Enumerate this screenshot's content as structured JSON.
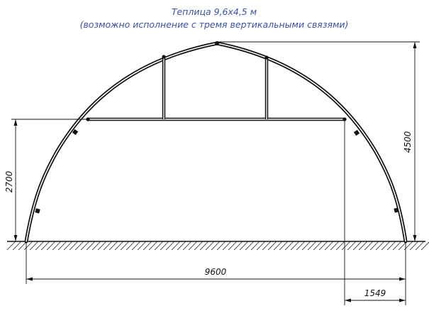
{
  "title": {
    "line1": "Теплица 9,6х4,5 м",
    "line2": "(возможно исполнение с тремя вертикальными связями)"
  },
  "dimensions": {
    "height_total": "4500",
    "height_tie": "2700",
    "width_total": "9600",
    "offset_right": "1549"
  },
  "colors": {
    "title": "#3b52a8",
    "lines": "#111111"
  }
}
